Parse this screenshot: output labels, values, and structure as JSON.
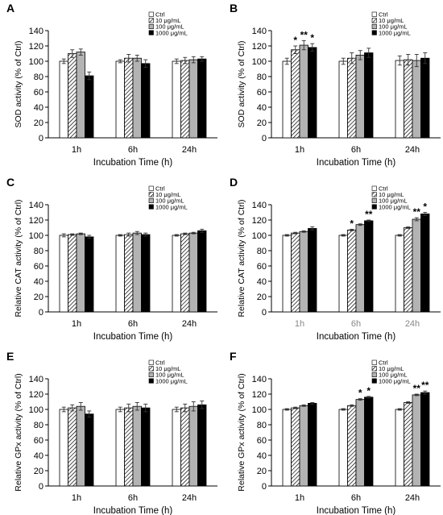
{
  "figure": {
    "background": "#ffffff"
  },
  "legend_labels": [
    "Ctrl",
    "10 μg/mL",
    "100 μg/mL",
    "1000 μg/mL"
  ],
  "colors": {
    "ctrl": "#ffffff",
    "c10": "hatch",
    "c100": "#b3b3b3",
    "c1000": "#000000",
    "axis": "#000000",
    "gray_tick": "#888888"
  },
  "chart_data": [
    {
      "panel": "A",
      "type": "bar",
      "categories": [
        "1h",
        "6h",
        "24h"
      ],
      "xlabel": "Incubation Time (h)",
      "ylabel": "SOD activity (% of Ctrl)",
      "ylim": [
        0,
        140
      ],
      "yticks": [
        0,
        20,
        40,
        60,
        80,
        100,
        120,
        140
      ],
      "series": [
        {
          "name": "Ctrl",
          "values": [
            100,
            100,
            100
          ],
          "errors": [
            3,
            2,
            3
          ]
        },
        {
          "name": "10 μg/mL",
          "values": [
            110,
            104,
            101
          ],
          "errors": [
            5,
            5,
            4
          ]
        },
        {
          "name": "100 μg/mL",
          "values": [
            112,
            104,
            102
          ],
          "errors": [
            4,
            4,
            4
          ]
        },
        {
          "name": "1000 μg/mL",
          "values": [
            81,
            97,
            103
          ],
          "errors": [
            5,
            5,
            3
          ]
        }
      ],
      "annotations": []
    },
    {
      "panel": "B",
      "type": "bar",
      "categories": [
        "1h",
        "6h",
        "24h"
      ],
      "xlabel": "Incubation Time (h)",
      "ylabel": "SOD activity (% of Ctrl)",
      "ylim": [
        0,
        140
      ],
      "yticks": [
        0,
        20,
        40,
        60,
        80,
        100,
        120,
        140
      ],
      "series": [
        {
          "name": "Ctrl",
          "values": [
            100,
            100,
            101
          ],
          "errors": [
            4,
            4,
            6
          ]
        },
        {
          "name": "10 μg/mL",
          "values": [
            115,
            104,
            102
          ],
          "errors": [
            5,
            7,
            7
          ]
        },
        {
          "name": "100 μg/mL",
          "values": [
            121,
            108,
            101
          ],
          "errors": [
            6,
            6,
            8
          ]
        },
        {
          "name": "1000 μg/mL",
          "values": [
            118,
            111,
            104
          ],
          "errors": [
            5,
            6,
            7
          ]
        }
      ],
      "annotations": [
        {
          "category": 0,
          "series": 1,
          "text": "*"
        },
        {
          "category": 0,
          "series": 2,
          "text": "**"
        },
        {
          "category": 0,
          "series": 3,
          "text": "*"
        }
      ]
    },
    {
      "panel": "C",
      "type": "bar",
      "categories": [
        "1h",
        "6h",
        "24h"
      ],
      "xlabel": "Incubation Time (h)",
      "ylabel": "Relative CAT activity (% of Ctrl)",
      "ylim": [
        0,
        140
      ],
      "yticks": [
        0,
        20,
        40,
        60,
        80,
        100,
        120,
        140
      ],
      "series": [
        {
          "name": "Ctrl",
          "values": [
            100,
            100,
            100
          ],
          "errors": [
            2,
            1,
            1
          ]
        },
        {
          "name": "10 μg/mL",
          "values": [
            101,
            101,
            102
          ],
          "errors": [
            1,
            2,
            1
          ]
        },
        {
          "name": "100 μg/mL",
          "values": [
            102,
            103,
            103
          ],
          "errors": [
            1,
            2,
            1
          ]
        },
        {
          "name": "1000 μg/mL",
          "values": [
            98,
            101,
            106
          ],
          "errors": [
            2,
            2,
            2
          ]
        }
      ],
      "annotations": []
    },
    {
      "panel": "D",
      "type": "bar",
      "categories": [
        "1h",
        "6h",
        "24h"
      ],
      "xlabel": "Incubation Time (h)",
      "ylabel": "Relative CAT activity (% of Ctrl)",
      "ylim": [
        0,
        140
      ],
      "yticks": [
        0,
        20,
        40,
        60,
        80,
        100,
        120,
        140
      ],
      "series": [
        {
          "name": "Ctrl",
          "values": [
            100,
            100,
            100
          ],
          "errors": [
            1,
            1,
            1
          ]
        },
        {
          "name": "10 μg/mL",
          "values": [
            103,
            107,
            110
          ],
          "errors": [
            1,
            1,
            1
          ]
        },
        {
          "name": "100 μg/mL",
          "values": [
            105,
            114,
            121
          ],
          "errors": [
            1,
            1,
            2
          ]
        },
        {
          "name": "1000 μg/mL",
          "values": [
            109,
            119,
            128
          ],
          "errors": [
            2,
            1,
            2
          ]
        }
      ],
      "annotations": [
        {
          "category": 1,
          "series": 1,
          "text": "*"
        },
        {
          "category": 1,
          "series": 3,
          "text": "**"
        },
        {
          "category": 2,
          "series": 2,
          "text": "**"
        },
        {
          "category": 2,
          "series": 3,
          "text": "*"
        }
      ]
    },
    {
      "panel": "E",
      "type": "bar",
      "categories": [
        "1h",
        "6h",
        "24h"
      ],
      "xlabel": "Incubation Time (h)",
      "ylabel": "Relative GPx activity (% of Ctrl)",
      "ylim": [
        0,
        140
      ],
      "yticks": [
        0,
        20,
        40,
        60,
        80,
        100,
        120,
        140
      ],
      "series": [
        {
          "name": "Ctrl",
          "values": [
            100,
            100,
            100
          ],
          "errors": [
            3,
            3,
            3
          ]
        },
        {
          "name": "10 μg/mL",
          "values": [
            102,
            102,
            102
          ],
          "errors": [
            4,
            5,
            5
          ]
        },
        {
          "name": "100 μg/mL",
          "values": [
            104,
            104,
            104
          ],
          "errors": [
            5,
            5,
            6
          ]
        },
        {
          "name": "1000 μg/mL",
          "values": [
            94,
            102,
            106
          ],
          "errors": [
            4,
            5,
            5
          ]
        }
      ],
      "annotations": []
    },
    {
      "panel": "F",
      "type": "bar",
      "categories": [
        "1h",
        "6h",
        "24h"
      ],
      "xlabel": "Incubation Time (h)",
      "ylabel": "Relative GPx activity (% of Ctrl)",
      "ylim": [
        0,
        140
      ],
      "yticks": [
        0,
        20,
        40,
        60,
        80,
        100,
        120,
        140
      ],
      "series": [
        {
          "name": "Ctrl",
          "values": [
            100,
            100,
            100
          ],
          "errors": [
            1,
            1,
            1
          ]
        },
        {
          "name": "10 μg/mL",
          "values": [
            102,
            105,
            109
          ],
          "errors": [
            1,
            1,
            1
          ]
        },
        {
          "name": "100 μg/mL",
          "values": [
            105,
            113,
            119
          ],
          "errors": [
            1,
            1,
            1
          ]
        },
        {
          "name": "1000 μg/mL",
          "values": [
            108,
            116,
            122
          ],
          "errors": [
            1,
            1,
            2
          ]
        }
      ],
      "annotations": [
        {
          "category": 1,
          "series": 2,
          "text": "*"
        },
        {
          "category": 1,
          "series": 3,
          "text": "*"
        },
        {
          "category": 2,
          "series": 2,
          "text": "**"
        },
        {
          "category": 2,
          "series": 3,
          "text": "**"
        }
      ]
    }
  ]
}
